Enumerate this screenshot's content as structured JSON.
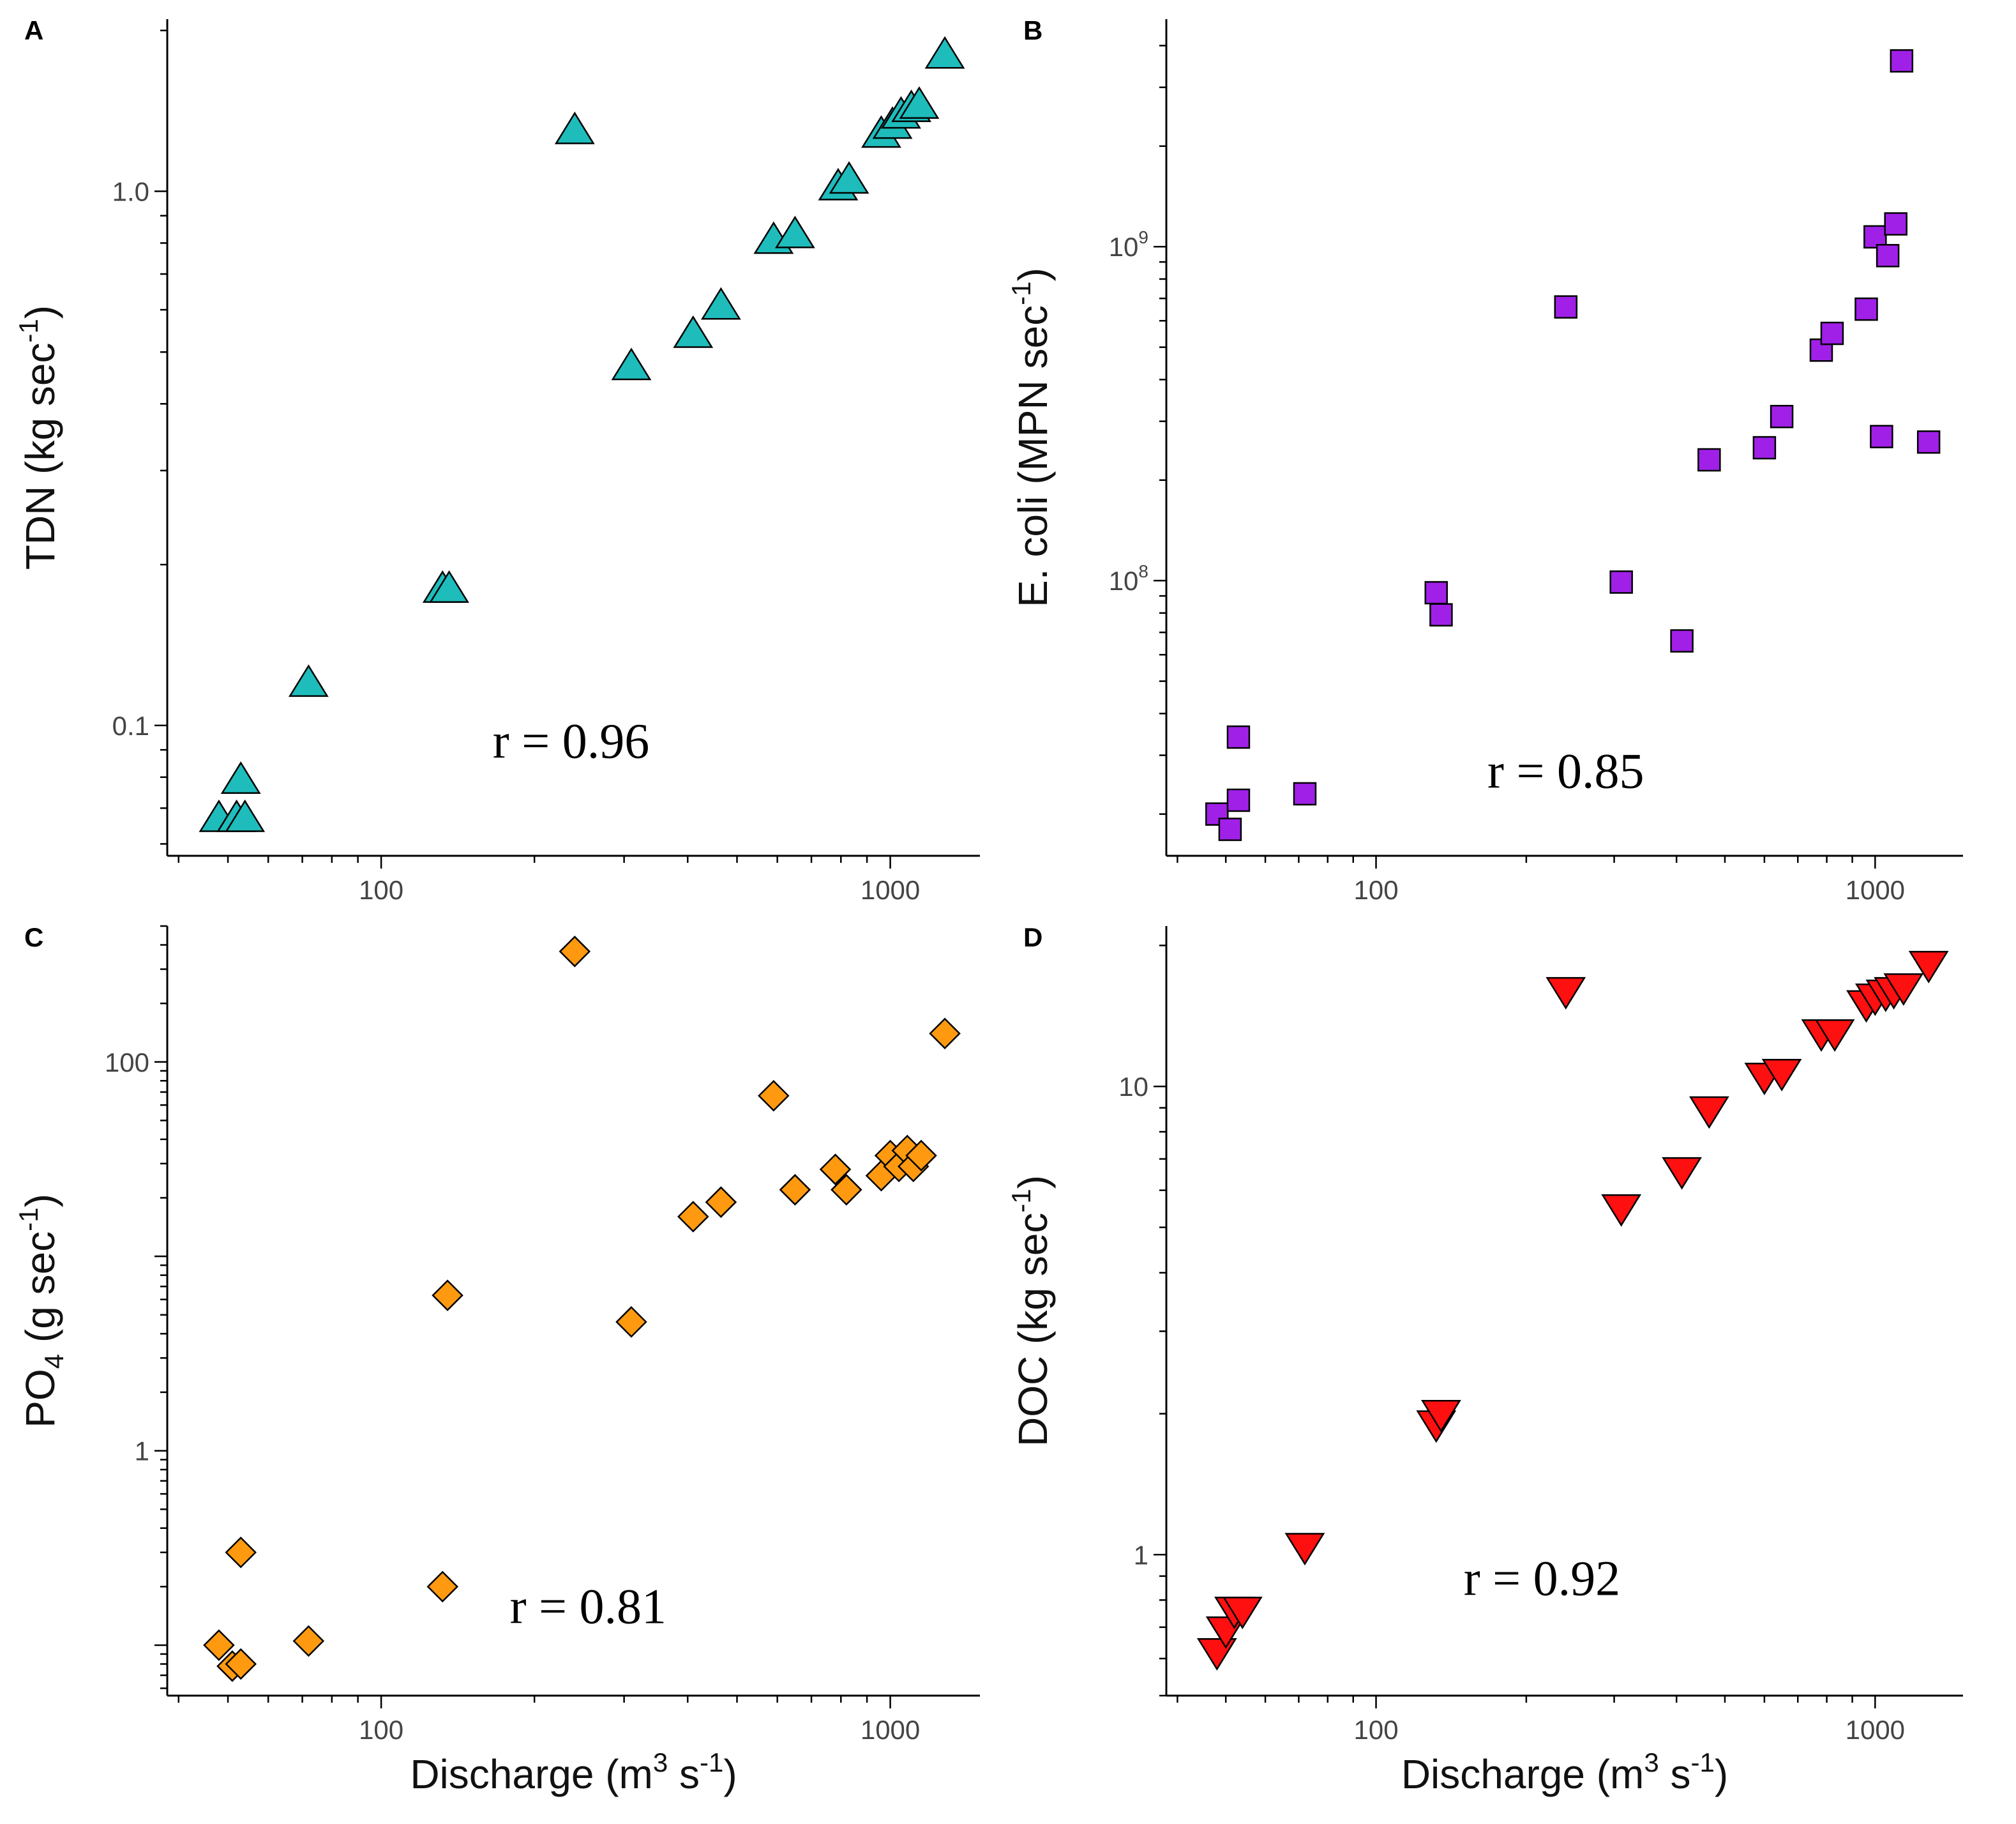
{
  "chart_data": [
    {
      "panel": "A",
      "type": "scatter",
      "marker": "triangle-up",
      "color": "#1fbcbc",
      "ylabel": "TDN (kg sec",
      "ylabel_sup": "-1",
      "ylabel_tail": ")",
      "xlabel": "",
      "xscale": "log",
      "yscale": "log",
      "xlim": [
        38,
        1500
      ],
      "ylim": [
        0.057,
        2.1
      ],
      "yticks": [
        {
          "value": 0.1,
          "label": "0.1"
        },
        {
          "value": 1.0,
          "label": "1.0"
        }
      ],
      "xticks": [
        {
          "value": 100,
          "label": "100"
        },
        {
          "value": 1000,
          "label": "1000"
        }
      ],
      "annotation": "r = 0.96",
      "annotation_pos": {
        "x": 236,
        "y": 0.087
      },
      "points": [
        {
          "x": 48,
          "y": 0.067
        },
        {
          "x": 52,
          "y": 0.067
        },
        {
          "x": 54,
          "y": 0.067
        },
        {
          "x": 53,
          "y": 0.079
        },
        {
          "x": 72,
          "y": 0.12
        },
        {
          "x": 132,
          "y": 0.18
        },
        {
          "x": 136,
          "y": 0.18
        },
        {
          "x": 240,
          "y": 1.3
        },
        {
          "x": 310,
          "y": 0.47
        },
        {
          "x": 410,
          "y": 0.54
        },
        {
          "x": 465,
          "y": 0.61
        },
        {
          "x": 590,
          "y": 0.81
        },
        {
          "x": 650,
          "y": 0.83
        },
        {
          "x": 790,
          "y": 1.02
        },
        {
          "x": 830,
          "y": 1.05
        },
        {
          "x": 960,
          "y": 1.28
        },
        {
          "x": 1010,
          "y": 1.33
        },
        {
          "x": 1050,
          "y": 1.39
        },
        {
          "x": 1100,
          "y": 1.43
        },
        {
          "x": 1140,
          "y": 1.45
        },
        {
          "x": 1280,
          "y": 1.8
        }
      ]
    },
    {
      "panel": "B",
      "type": "scatter",
      "marker": "square",
      "color": "#a020e8",
      "ylabel": "E. coli (MPN sec",
      "ylabel_sup": "-1",
      "ylabel_tail": ")",
      "xlabel": "",
      "xscale": "log",
      "yscale": "log",
      "xlim": [
        38,
        1500
      ],
      "ylim": [
        15000000,
        4800000000
      ],
      "yticks": [
        {
          "value": 100000000,
          "label": "10",
          "sup": "8"
        },
        {
          "value": 1000000000,
          "label": "10",
          "sup": "9"
        }
      ],
      "xticks": [
        {
          "value": 100,
          "label": "100"
        },
        {
          "value": 1000,
          "label": "1000"
        }
      ],
      "annotation": "r = 0.85",
      "annotation_pos": {
        "x": 240,
        "y": 24000000
      },
      "points": [
        {
          "x": 48,
          "y": 20000000
        },
        {
          "x": 51,
          "y": 18000000
        },
        {
          "x": 53,
          "y": 22000000
        },
        {
          "x": 53,
          "y": 34000000
        },
        {
          "x": 72,
          "y": 23000000
        },
        {
          "x": 132,
          "y": 92000000
        },
        {
          "x": 135,
          "y": 79000000
        },
        {
          "x": 240,
          "y": 660000000
        },
        {
          "x": 310,
          "y": 99000000
        },
        {
          "x": 410,
          "y": 66000000
        },
        {
          "x": 465,
          "y": 230000000
        },
        {
          "x": 600,
          "y": 250000000
        },
        {
          "x": 650,
          "y": 310000000
        },
        {
          "x": 780,
          "y": 490000000
        },
        {
          "x": 820,
          "y": 550000000
        },
        {
          "x": 960,
          "y": 650000000
        },
        {
          "x": 1000,
          "y": 1070000000
        },
        {
          "x": 1030,
          "y": 270000000
        },
        {
          "x": 1060,
          "y": 940000000
        },
        {
          "x": 1100,
          "y": 1170000000
        },
        {
          "x": 1130,
          "y": 3600000000
        },
        {
          "x": 1280,
          "y": 260000000
        }
      ]
    },
    {
      "panel": "C",
      "type": "scatter",
      "marker": "diamond",
      "color": "#ff9a10",
      "ylabel": "PO",
      "ylabel_sub": "4",
      "ylabel_tail": " (g sec",
      "ylabel_sup": "-1",
      "ylabel_end": ")",
      "xlabel": "Discharge (m",
      "xlabel_sup": "3",
      "xlabel_mid": " s",
      "xlabel_sup2": "-1",
      "xlabel_end": ")",
      "xscale": "log",
      "yscale": "log",
      "xlim": [
        38,
        1500
      ],
      "ylim": [
        0.055,
        500
      ],
      "yticks": [
        {
          "value": 1,
          "label": "1"
        },
        {
          "value": 100,
          "label": "100"
        }
      ],
      "xticks": [
        {
          "value": 100,
          "label": "100"
        },
        {
          "value": 1000,
          "label": "1000"
        }
      ],
      "annotation": "r = 0.81",
      "annotation_pos": {
        "x": 255,
        "y": 0.13
      },
      "points": [
        {
          "x": 48,
          "y": 0.1
        },
        {
          "x": 51,
          "y": 0.078
        },
        {
          "x": 53,
          "y": 0.08
        },
        {
          "x": 53,
          "y": 0.3
        },
        {
          "x": 72,
          "y": 0.105
        },
        {
          "x": 132,
          "y": 0.2
        },
        {
          "x": 135,
          "y": 6.3
        },
        {
          "x": 240,
          "y": 370
        },
        {
          "x": 310,
          "y": 4.6
        },
        {
          "x": 410,
          "y": 16
        },
        {
          "x": 465,
          "y": 19
        },
        {
          "x": 590,
          "y": 67
        },
        {
          "x": 650,
          "y": 22
        },
        {
          "x": 780,
          "y": 28
        },
        {
          "x": 820,
          "y": 22
        },
        {
          "x": 960,
          "y": 26
        },
        {
          "x": 1000,
          "y": 33
        },
        {
          "x": 1040,
          "y": 29
        },
        {
          "x": 1080,
          "y": 35
        },
        {
          "x": 1110,
          "y": 29
        },
        {
          "x": 1150,
          "y": 33
        },
        {
          "x": 1280,
          "y": 140
        }
      ]
    },
    {
      "panel": "D",
      "type": "scatter",
      "marker": "triangle-down",
      "color": "#ff1010",
      "ylabel": "DOC (kg sec",
      "ylabel_sup": "-1",
      "ylabel_tail": ")",
      "xlabel": "Discharge (m",
      "xlabel_sup": "3",
      "xlabel_mid": " s",
      "xlabel_sup2": "-1",
      "xlabel_end": ")",
      "xscale": "log",
      "yscale": "log",
      "xlim": [
        38,
        1500
      ],
      "ylim": [
        0.5,
        22
      ],
      "yticks": [
        {
          "value": 1,
          "label": "1"
        },
        {
          "value": 10,
          "label": "10"
        }
      ],
      "xticks": [
        {
          "value": 100,
          "label": "100"
        },
        {
          "value": 1000,
          "label": "1000"
        }
      ],
      "annotation": "r = 0.92",
      "annotation_pos": {
        "x": 215,
        "y": 0.82
      },
      "points": [
        {
          "x": 48,
          "y": 0.62
        },
        {
          "x": 50,
          "y": 0.69
        },
        {
          "x": 52,
          "y": 0.76
        },
        {
          "x": 54,
          "y": 0.76
        },
        {
          "x": 72,
          "y": 1.04
        },
        {
          "x": 132,
          "y": 1.9
        },
        {
          "x": 135,
          "y": 2.0
        },
        {
          "x": 240,
          "y": 16.0
        },
        {
          "x": 310,
          "y": 5.5
        },
        {
          "x": 410,
          "y": 6.6
        },
        {
          "x": 465,
          "y": 8.9
        },
        {
          "x": 600,
          "y": 10.5
        },
        {
          "x": 650,
          "y": 10.7
        },
        {
          "x": 780,
          "y": 13.0
        },
        {
          "x": 830,
          "y": 13.0
        },
        {
          "x": 960,
          "y": 15.0
        },
        {
          "x": 1000,
          "y": 15.5
        },
        {
          "x": 1050,
          "y": 15.8
        },
        {
          "x": 1090,
          "y": 16.0
        },
        {
          "x": 1140,
          "y": 16.3
        },
        {
          "x": 1280,
          "y": 18.2
        }
      ]
    }
  ]
}
